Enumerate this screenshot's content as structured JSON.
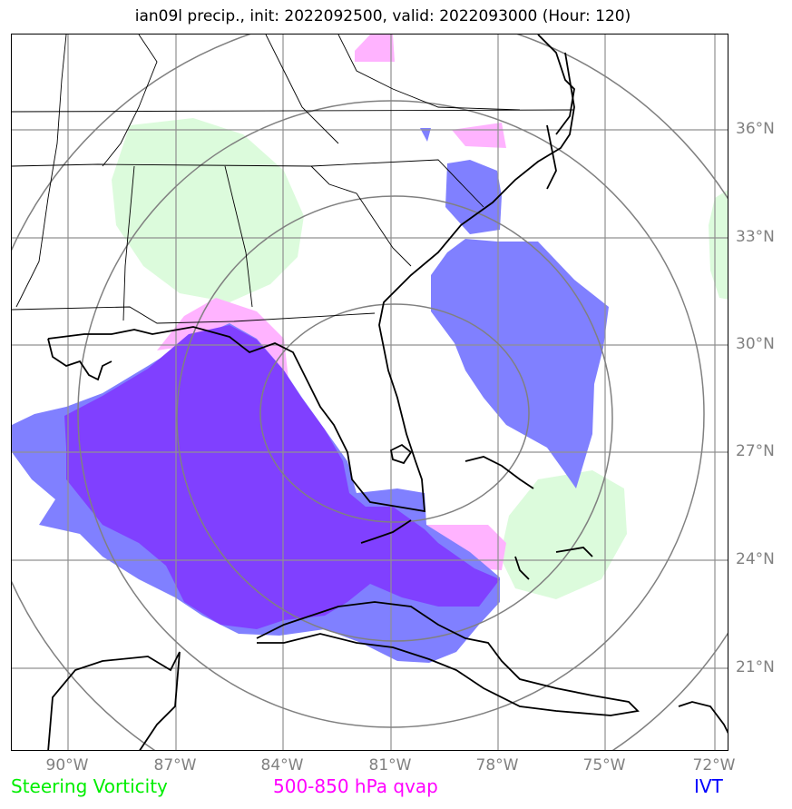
{
  "title": "ian09l precip., init: 2022092500, valid: 2022093000 (Hour: 120)",
  "lat_labels": [
    "36°N",
    "33°N",
    "30°N",
    "27°N",
    "24°N",
    "21°N"
  ],
  "lon_labels": [
    "90°W",
    "87°W",
    "84°W",
    "81°W",
    "78°W",
    "75°W",
    "72°W"
  ],
  "legend": {
    "vorticity": {
      "label": "Steering Vorticity",
      "color": "#00ee00"
    },
    "qvap": {
      "label": "500-850 hPa qvap",
      "color": "#ff00ff"
    },
    "ivt": {
      "label": "IVT",
      "color": "#0000ff"
    }
  },
  "fill_colors": {
    "vorticity": "#dcfbdc",
    "qvap": "#ffb3ff",
    "ivt": "#8080ff",
    "overlap": "#8040ff"
  },
  "grid_color": "#909090",
  "range_ring_color": "#808080"
}
